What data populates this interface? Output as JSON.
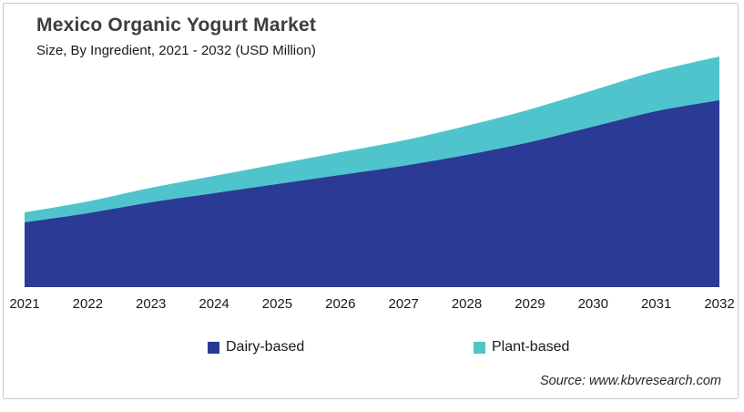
{
  "header": {
    "title": "Mexico Organic Yogurt Market",
    "subtitle": "Size, By Ingredient, 2021 - 2032 (USD Million)"
  },
  "chart_data": {
    "type": "area",
    "stacked": true,
    "title": "Mexico Organic Yogurt Market",
    "subtitle": "Size, By Ingredient, 2021 - 2032 (USD Million)",
    "x": [
      "2021",
      "2022",
      "2023",
      "2024",
      "2025",
      "2026",
      "2027",
      "2028",
      "2029",
      "2030",
      "2031",
      "2032"
    ],
    "series": [
      {
        "name": "Dairy-based",
        "color": "#2B3A94",
        "values": [
          71,
          81,
          93,
          103,
          113,
          123,
          133,
          145,
          159,
          176,
          193,
          205
        ]
      },
      {
        "name": "Plant-based",
        "color": "#4FC4CC",
        "values": [
          11,
          13,
          16,
          19,
          22,
          25,
          28,
          32,
          36,
          40,
          44,
          48
        ]
      }
    ],
    "xlabel": "",
    "ylabel": "",
    "ylim": [
      0,
      290
    ],
    "grid": false,
    "y_axis_shown": false,
    "legend_position": "bottom"
  },
  "legend": [
    {
      "label": "Dairy-based",
      "color": "#2B3A94"
    },
    {
      "label": "Plant-based",
      "color": "#4FC4CC"
    }
  ],
  "footer": {
    "source": "Source: www.kbvresearch.com"
  }
}
